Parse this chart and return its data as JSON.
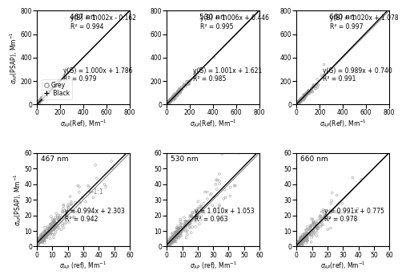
{
  "upper_panels": [
    {
      "wavelength": "467 nm",
      "xlim": [
        0,
        800
      ],
      "ylim": [
        0,
        800
      ],
      "xticks": [
        0,
        200,
        400,
        600,
        800
      ],
      "yticks": [
        0,
        200,
        400,
        600,
        800
      ],
      "eq_B": "y(B) = 1.002x - 0.162",
      "r2_B": "R² = 0.994",
      "eq_G": "y(G) = 1.000x + 1.786",
      "r2_G": "R² = 0.979",
      "slope_B": 1.002,
      "intercept_B": -0.162,
      "slope_G": 1.0,
      "intercept_G": 1.786,
      "show_legend": true,
      "black_xmin": 580,
      "black_xmax": 720,
      "grey_scale": 55,
      "grey_n": 280,
      "black_n": 60
    },
    {
      "wavelength": "530 nm",
      "xlim": [
        0,
        800
      ],
      "ylim": [
        0,
        800
      ],
      "xticks": [
        0,
        200,
        400,
        600,
        800
      ],
      "yticks": [
        0,
        200,
        400,
        600,
        800
      ],
      "eq_B": "y(B) = 1.006x + 0.446",
      "r2_B": "R² = 0.995",
      "eq_G": "y(G) = 1.001x + 1.621",
      "r2_G": "R² = 0.985",
      "slope_B": 1.006,
      "intercept_B": 0.446,
      "slope_G": 1.001,
      "intercept_G": 1.621,
      "show_legend": false,
      "black_xmin": 500,
      "black_xmax": 650,
      "grey_scale": 55,
      "grey_n": 280,
      "black_n": 60
    },
    {
      "wavelength": "660 nm",
      "xlim": [
        0,
        800
      ],
      "ylim": [
        0,
        800
      ],
      "xticks": [
        0,
        200,
        400,
        600,
        800
      ],
      "yticks": [
        0,
        200,
        400,
        600,
        800
      ],
      "eq_B": "y(B) = 1.020x + 1.078",
      "r2_B": "R² = 0.997",
      "eq_G": "y(G) = 0.989x + 0.740",
      "r2_G": "R² = 0.991",
      "slope_B": 1.02,
      "intercept_B": 1.078,
      "slope_G": 0.989,
      "intercept_G": 0.74,
      "show_legend": false,
      "black_xmin": 380,
      "black_xmax": 500,
      "grey_scale": 45,
      "grey_n": 280,
      "black_n": 50
    }
  ],
  "lower_panels": [
    {
      "wavelength": "467 nm",
      "xlim": [
        0,
        60
      ],
      "ylim": [
        0,
        60
      ],
      "xticks": [
        0,
        10,
        20,
        30,
        40,
        50,
        60
      ],
      "yticks": [
        0,
        10,
        20,
        30,
        40,
        50,
        60
      ],
      "eq": "y = 0.994x + 2.303",
      "r2": "R² = 0.942",
      "slope": 0.994,
      "intercept": 2.303,
      "grey_scale": 10,
      "grey_n": 300
    },
    {
      "wavelength": "530 nm",
      "xlim": [
        0,
        60
      ],
      "ylim": [
        0,
        60
      ],
      "xticks": [
        0,
        10,
        20,
        30,
        40,
        50,
        60
      ],
      "yticks": [
        0,
        10,
        20,
        30,
        40,
        50,
        60
      ],
      "eq": "y = 1.010x + 1.053",
      "r2": "R² = 0.963",
      "slope": 1.01,
      "intercept": 1.053,
      "grey_scale": 10,
      "grey_n": 300
    },
    {
      "wavelength": "660 nm",
      "xlim": [
        0,
        60
      ],
      "ylim": [
        0,
        60
      ],
      "xticks": [
        0,
        10,
        20,
        30,
        40,
        50,
        60
      ],
      "yticks": [
        0,
        10,
        20,
        30,
        40,
        50,
        60
      ],
      "eq": "y = 0.991x + 0.775",
      "r2": "R² = 0.978",
      "slope": 0.991,
      "intercept": 0.775,
      "grey_scale": 8,
      "grey_n": 280
    }
  ],
  "upper_ylabel": "$\\sigma_{AP}$(PSAP), Mm$^{-1}$",
  "lower_ylabel": "$\\sigma_{AP}$(PSAP), Mm$^{-1}$",
  "upper_xlabel_0": "$\\sigma_{AP}$(Ref), Mm$^{-1}$",
  "upper_xlabel_1": "$\\sigma_{AP}$(Ref), Mm$^{-1}$",
  "upper_xlabel_2": "$\\sigma_{AP}$(Ref), Mm$^{-1}$",
  "lower_xlabel_0": "$\\sigma_{AP}$ (ref), Mm$^{-1}$",
  "lower_xlabel_1": "$\\sigma_{AP}$ (ref), Mm$^{-1}$",
  "lower_xlabel_2": "$\\sigma_{AP}$(ref), Mm$^{-1}$",
  "grey_color": "#999999",
  "black_color": "#000000",
  "one_to_one_color": "#777777"
}
